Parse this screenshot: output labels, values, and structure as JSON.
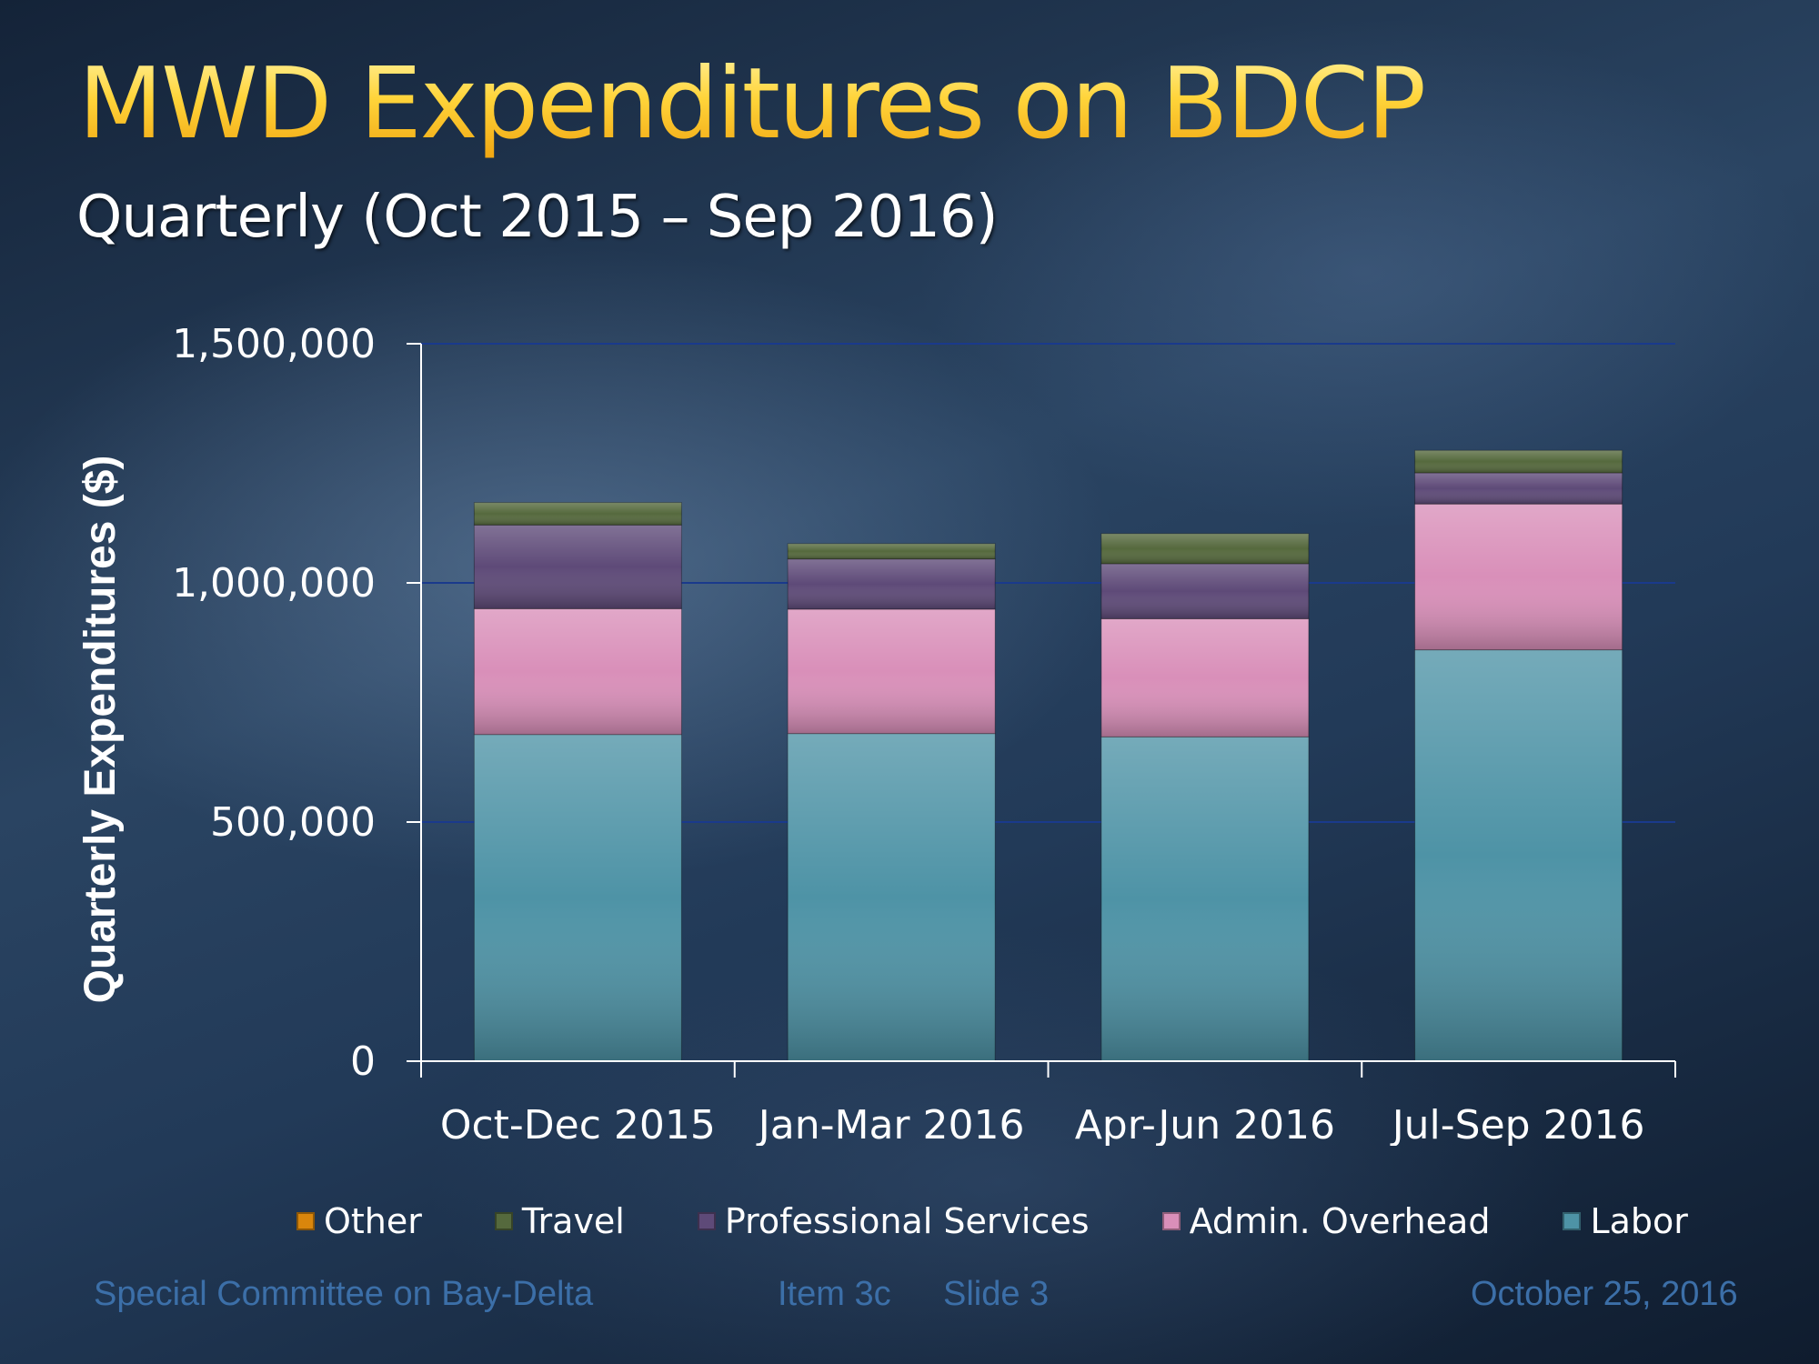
{
  "slide": {
    "title": "MWD Expenditures on BDCP",
    "subtitle": "Quarterly (Oct 2015 – Sep 2016)"
  },
  "footer": {
    "left": "Special Committee on Bay-Delta",
    "item": "Item 3c",
    "slide": "Slide 3",
    "date": "October 25, 2016"
  },
  "colors": {
    "Labor": "#4e93a6",
    "Admin. Overhead": "#d98fb9",
    "Professional Services": "#5e4a78",
    "Travel": "#55693d",
    "Other": "#d9860c"
  },
  "chart_data": {
    "type": "bar",
    "stacked": true,
    "title": "",
    "xlabel": "",
    "ylabel": "Quarterly Expenditures ($)",
    "ylim": [
      0,
      1500000
    ],
    "yticks": [
      0,
      500000,
      1000000,
      1500000
    ],
    "ytick_labels": [
      "0",
      "500,000",
      "1,000,000",
      "1,500,000"
    ],
    "categories": [
      "Oct-Dec 2015",
      "Jan-Mar 2016",
      "Apr-Jun 2016",
      "Jul-Sep 2016"
    ],
    "series": [
      {
        "name": "Labor",
        "values": [
          683000,
          685000,
          678000,
          860000
        ]
      },
      {
        "name": "Admin. Overhead",
        "values": [
          263000,
          260000,
          247000,
          305000
        ]
      },
      {
        "name": "Professional Services",
        "values": [
          175000,
          105000,
          115000,
          65000
        ]
      },
      {
        "name": "Travel",
        "values": [
          47000,
          32000,
          63000,
          47000
        ]
      },
      {
        "name": "Other",
        "values": [
          0,
          0,
          0,
          0
        ]
      }
    ],
    "legend": {
      "position": "bottom",
      "order": [
        "Other",
        "Travel",
        "Professional Services",
        "Admin. Overhead",
        "Labor"
      ]
    },
    "grid": true
  }
}
